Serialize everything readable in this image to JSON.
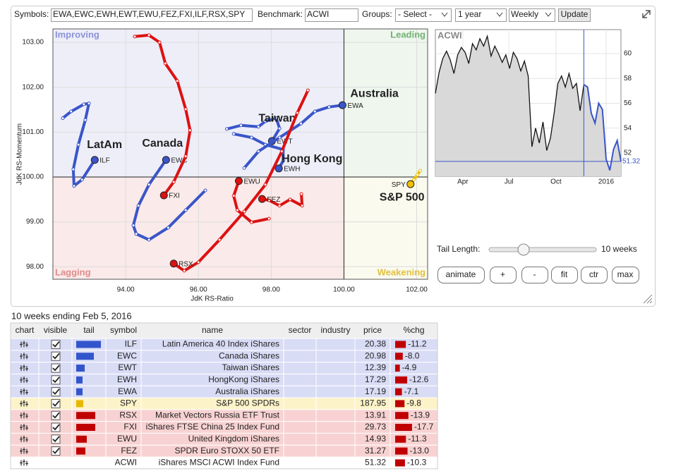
{
  "toolbar": {
    "symbols_label": "Symbols:",
    "symbols_value": "EWA,EWC,EWH,EWT,EWU,FEZ,FXI,ILF,RSX,SPY",
    "benchmark_label": "Benchmark:",
    "benchmark_value": "ACWI",
    "groups_label": "Groups:",
    "groups_value": "- Select -",
    "period": "1 year",
    "interval": "Weekly",
    "update": "Update"
  },
  "rrg": {
    "type": "scatter",
    "xlabel": "JdK RS-Ratio",
    "ylabel": "JdK RS-Momentum",
    "xlim": [
      92.0,
      102.3
    ],
    "ylim": [
      97.72,
      103.3
    ],
    "center": 100,
    "xticks": [
      {
        "value": 94,
        "label": "94.00"
      },
      {
        "value": 96,
        "label": "96.00"
      },
      {
        "value": 98,
        "label": "98.00"
      },
      {
        "value": 100,
        "label": "100.00"
      },
      {
        "value": 102,
        "label": "102.00"
      }
    ],
    "yticks": [
      {
        "value": 98,
        "label": "98.00"
      },
      {
        "value": 99,
        "label": "99.00"
      },
      {
        "value": 100,
        "label": "100.00"
      },
      {
        "value": 101,
        "label": "101.00"
      },
      {
        "value": 102,
        "label": "102.00"
      },
      {
        "value": 103,
        "label": "103.00"
      }
    ],
    "grid": true,
    "quadrants": [
      {
        "label": "Improving",
        "color": "#eeeef9",
        "text_color": "#8a92d8"
      },
      {
        "label": "Leading",
        "color": "#eef6ee",
        "text_color": "#72b272"
      },
      {
        "label": "Lagging",
        "color": "#fbeaea",
        "text_color": "#e08a8a"
      },
      {
        "label": "Weakening",
        "color": "#fafaee",
        "text_color": "#e2c040"
      }
    ],
    "series": [
      {
        "name": "ILF",
        "label": "LatAm",
        "color": "#3a55c8",
        "x": [
          92.27,
          92.5,
          92.85,
          92.99,
          92.89,
          92.7,
          92.56,
          92.58,
          92.8,
          93.15
        ],
        "y": [
          101.31,
          101.46,
          101.62,
          101.64,
          101.27,
          100.72,
          100.17,
          99.8,
          99.94,
          100.38
        ]
      },
      {
        "name": "EWC",
        "label": "Canada",
        "color": "#3a55c8",
        "x": [
          96.19,
          95.65,
          95.17,
          94.64,
          94.29,
          94.21,
          94.35,
          94.64,
          95.11
        ],
        "y": [
          99.7,
          99.26,
          98.87,
          98.6,
          98.73,
          98.92,
          99.36,
          99.83,
          100.38
        ]
      },
      {
        "name": "EWT",
        "label": "Taiwan",
        "color": "#3a55c8",
        "x": [
          96.78,
          97.17,
          97.65,
          97.84,
          98.14,
          98.23,
          98.02
        ],
        "y": [
          101.07,
          101.15,
          101.12,
          101.24,
          101.31,
          101.08,
          100.8
        ]
      },
      {
        "name": "EWH",
        "label": "Hong Kong",
        "color": "#3a55c8",
        "x": [
          96.97,
          97.46,
          97.84,
          98.33,
          98.33,
          98.21
        ],
        "y": [
          100.96,
          100.88,
          100.72,
          100.61,
          100.36,
          100.19
        ]
      },
      {
        "name": "EWA",
        "label": "Australia",
        "color": "#3a55c8",
        "x": [
          97.26,
          97.65,
          98.23,
          98.82,
          99.2,
          99.59,
          99.96
        ],
        "y": [
          100.2,
          100.57,
          100.88,
          101.19,
          101.46,
          101.56,
          101.6
        ]
      },
      {
        "name": "SPY",
        "label": "S&P 500",
        "color": "#f0c000",
        "x": [
          102.1,
          102.02,
          101.92,
          101.83
        ],
        "y": [
          100.14,
          100.05,
          99.94,
          99.84
        ]
      },
      {
        "name": "RSX",
        "color": "#dd1111",
        "x": [
          99.01,
          98.72,
          98.29,
          97.84,
          97.26,
          96.58,
          96.0,
          95.61,
          95.32
        ],
        "y": [
          101.93,
          101.43,
          100.57,
          99.83,
          99.23,
          98.6,
          98.1,
          97.91,
          98.07
        ]
      },
      {
        "name": "FXI",
        "color": "#dd1111",
        "x": [
          94.25,
          94.64,
          94.93,
          95.09,
          95.42,
          95.65,
          95.77,
          95.65,
          95.32,
          95.05
        ],
        "y": [
          103.13,
          103.16,
          103.0,
          102.53,
          102.14,
          101.51,
          101.04,
          100.46,
          99.89,
          99.59
        ]
      },
      {
        "name": "EWU",
        "color": "#dd1111",
        "x": [
          97.94,
          97.46,
          97.07,
          96.97,
          97.11
        ],
        "y": [
          99.07,
          98.99,
          99.26,
          99.58,
          99.91
        ]
      },
      {
        "name": "FEZ",
        "color": "#dd1111",
        "x": [
          98.83,
          98.85,
          98.52,
          98.23,
          97.94,
          97.75
        ],
        "y": [
          99.62,
          99.36,
          99.5,
          99.36,
          99.48,
          99.51
        ]
      }
    ]
  },
  "mini": {
    "type": "line",
    "values": [
      56.8,
      58.5,
      59.6,
      60.2,
      59.5,
      58.4,
      59.9,
      60.5,
      60.1,
      59.2,
      60.8,
      60.3,
      61.2,
      60.6,
      61.4,
      59.8,
      60.6,
      60.0,
      59.3,
      59.9,
      58.8,
      60.1,
      59.6,
      58.6,
      59.4,
      58.2,
      52.5,
      54.0,
      52.8,
      54.5,
      52.2,
      53.2,
      55.2,
      57.6,
      58.2,
      57.3,
      58.4,
      57.2,
      57.6,
      55.4,
      57.5,
      57.3,
      55.2,
      54.4,
      56.0,
      55.5,
      51.5,
      50.6,
      52.3,
      53.0,
      51.32
    ],
    "color": "#111111",
    "tail_color": "#3a55c8",
    "ylim": [
      50.12,
      61.93
    ],
    "yticks": [
      52,
      54,
      56,
      58,
      60
    ],
    "xticks": [
      {
        "value": 7.4,
        "label": "Apr"
      },
      {
        "value": 19.8,
        "label": "Jul"
      },
      {
        "value": 32.5,
        "label": "Oct"
      },
      {
        "value": 46.0,
        "label": "2016"
      }
    ]
  },
  "controls": {
    "tail_length": {
      "label": "Tail Length:",
      "value": 10,
      "value_label": "10 weeks",
      "range": [
        0,
        31
      ]
    },
    "buttons": [
      "animate",
      "+",
      "-",
      "fit",
      "ctr",
      "max"
    ]
  },
  "table": {
    "caption": "10 weeks ending Feb 5, 2016",
    "headers": [
      "chart",
      "visible",
      "tail",
      "symbol",
      "name",
      "sector",
      "industry",
      "price",
      "%chg"
    ],
    "rows": [
      {
        "symbol": "ILF",
        "name": "Latin America 40 Index iShares",
        "price": "20.38",
        "chg": "-11.2",
        "visible": true,
        "tail": 35,
        "color": "#3355cc",
        "bg": "#d9dcf5"
      },
      {
        "symbol": "EWC",
        "name": "Canada iShares",
        "price": "20.98",
        "chg": "-8.0",
        "visible": true,
        "tail": 25,
        "color": "#3355cc",
        "bg": "#d9dcf5"
      },
      {
        "symbol": "EWT",
        "name": "Taiwan iShares",
        "price": "12.39",
        "chg": "-4.9",
        "visible": true,
        "tail": 12,
        "color": "#3355cc",
        "bg": "#d9dcf5"
      },
      {
        "symbol": "EWH",
        "name": "HongKong iShares",
        "price": "17.29",
        "chg": "-12.6",
        "visible": true,
        "tail": 9,
        "color": "#3355cc",
        "bg": "#d9dcf5"
      },
      {
        "symbol": "EWA",
        "name": "Australia iShares",
        "price": "17.19",
        "chg": "-7.1",
        "visible": true,
        "tail": 9,
        "color": "#3355cc",
        "bg": "#d9dcf5"
      },
      {
        "symbol": "SPY",
        "name": "S&P 500 SPDRs",
        "price": "187.95",
        "chg": "-9.8",
        "visible": true,
        "tail": 10,
        "color": "#e8b800",
        "bg": "#fdf3c8"
      },
      {
        "symbol": "RSX",
        "name": "Market Vectors Russia ETF Trust",
        "price": "13.91",
        "chg": "-13.9",
        "visible": true,
        "tail": 27,
        "color": "#c00000",
        "bg": "#f8d2d2"
      },
      {
        "symbol": "FXI",
        "name": "iShares FTSE China 25 Index Fund",
        "price": "29.73",
        "chg": "-17.7",
        "visible": true,
        "tail": 27,
        "color": "#c00000",
        "bg": "#f8d2d2"
      },
      {
        "symbol": "EWU",
        "name": "United Kingdom iShares",
        "price": "14.93",
        "chg": "-11.3",
        "visible": true,
        "tail": 15,
        "color": "#c00000",
        "bg": "#f8d2d2"
      },
      {
        "symbol": "FEZ",
        "name": "SPDR Euro STOXX 50 ETF",
        "price": "31.27",
        "chg": "-13.0",
        "visible": true,
        "tail": 13,
        "color": "#c00000",
        "bg": "#f8d2d2"
      },
      {
        "symbol": "ACWI",
        "name": "iShares MSCI ACWI Index Fund",
        "price": "51.32",
        "chg": "-10.3",
        "visible": false,
        "tail": 0,
        "color": "#c00000",
        "bg": "#ffffff"
      }
    ]
  }
}
